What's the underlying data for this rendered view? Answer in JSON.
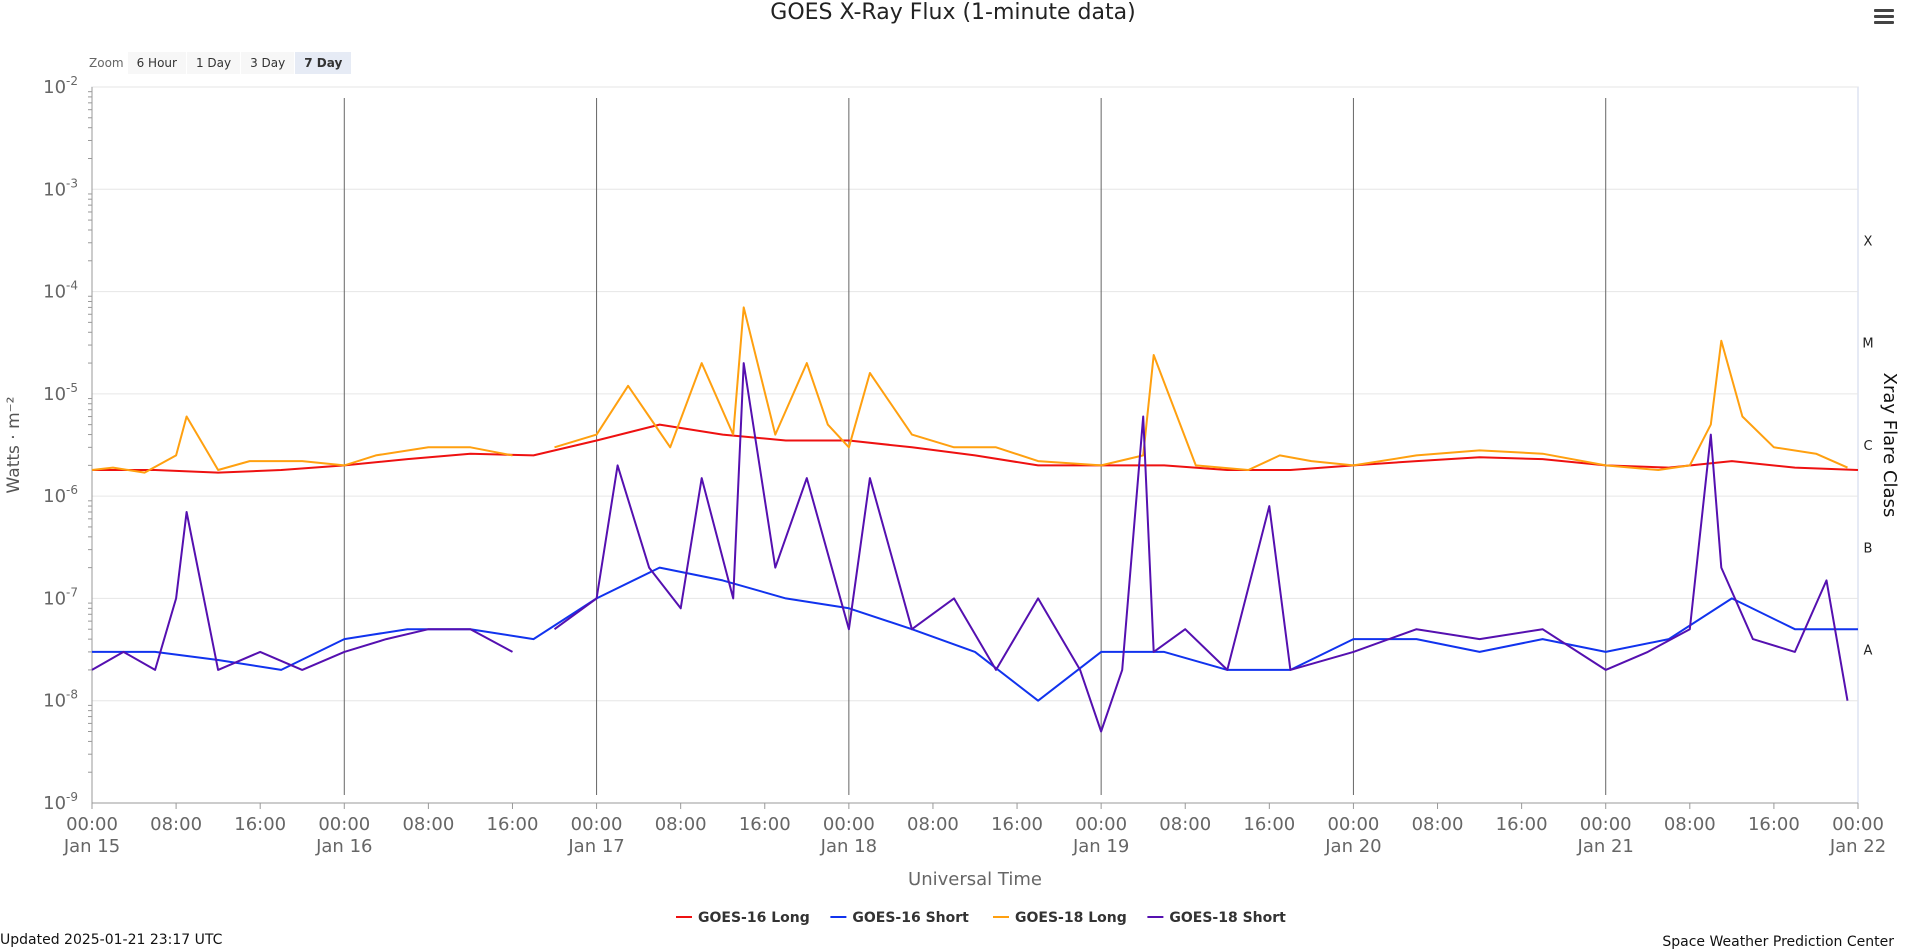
{
  "header": {
    "title": "GOES X-Ray Flux (1-minute data)",
    "menu_icon": "hamburger-menu-icon"
  },
  "zoom": {
    "label": "Zoom",
    "buttons": [
      "6 Hour",
      "1 Day",
      "3 Day",
      "7 Day"
    ],
    "active": "7 Day"
  },
  "footer": {
    "updated": "Updated 2025-01-21 23:17 UTC",
    "credit": "Space Weather Prediction Center"
  },
  "chart_data": {
    "type": "line",
    "title": "GOES X-Ray Flux (1-minute data)",
    "xlabel": "Universal Time",
    "ylabel": "Watts · m⁻²",
    "y2label": "Xray Flare Class",
    "yscale": "log",
    "ylim": [
      1e-09,
      0.01
    ],
    "y_ticks": [
      {
        "base": "10",
        "exp": "-2"
      },
      {
        "base": "10",
        "exp": "-3"
      },
      {
        "base": "10",
        "exp": "-4"
      },
      {
        "base": "10",
        "exp": "-5"
      },
      {
        "base": "10",
        "exp": "-6"
      },
      {
        "base": "10",
        "exp": "-7"
      },
      {
        "base": "10",
        "exp": "-8"
      },
      {
        "base": "10",
        "exp": "-9"
      }
    ],
    "xlim": [
      "2025-01-15 00:00",
      "2025-01-22 00:00"
    ],
    "x_ticks": [
      {
        "time": "00:00",
        "date": "Jan 15"
      },
      {
        "time": "08:00",
        "date": ""
      },
      {
        "time": "16:00",
        "date": ""
      },
      {
        "time": "00:00",
        "date": "Jan 16"
      },
      {
        "time": "08:00",
        "date": ""
      },
      {
        "time": "16:00",
        "date": ""
      },
      {
        "time": "00:00",
        "date": "Jan 17"
      },
      {
        "time": "08:00",
        "date": ""
      },
      {
        "time": "16:00",
        "date": ""
      },
      {
        "time": "00:00",
        "date": "Jan 18"
      },
      {
        "time": "08:00",
        "date": ""
      },
      {
        "time": "16:00",
        "date": ""
      },
      {
        "time": "00:00",
        "date": "Jan 19"
      },
      {
        "time": "08:00",
        "date": ""
      },
      {
        "time": "16:00",
        "date": ""
      },
      {
        "time": "00:00",
        "date": "Jan 20"
      },
      {
        "time": "08:00",
        "date": ""
      },
      {
        "time": "16:00",
        "date": ""
      },
      {
        "time": "00:00",
        "date": "Jan 21"
      },
      {
        "time": "08:00",
        "date": ""
      },
      {
        "time": "16:00",
        "date": ""
      },
      {
        "time": "00:00",
        "date": "Jan 22"
      }
    ],
    "day_lines": [
      "2025-01-16 00:00",
      "2025-01-17 00:00",
      "2025-01-18 00:00",
      "2025-01-19 00:00",
      "2025-01-20 00:00",
      "2025-01-21 00:00"
    ],
    "flare_classes": [
      {
        "label": "X",
        "flux": 0.0001
      },
      {
        "label": "M",
        "flux": 1e-05
      },
      {
        "label": "C",
        "flux": 1e-06
      },
      {
        "label": "B",
        "flux": 1e-07
      },
      {
        "label": "A",
        "flux": 1e-08
      }
    ],
    "grid": true,
    "legend": "bottom-center",
    "legend_entries": [
      {
        "name": "GOES-16 Long",
        "color": "#ee1111"
      },
      {
        "name": "GOES-16 Short",
        "color": "#1133ee"
      },
      {
        "name": "GOES-18 Long",
        "color": "#ffa010"
      },
      {
        "name": "GOES-18 Short",
        "color": "#5510b0"
      }
    ],
    "series": [
      {
        "name": "GOES-16 Long",
        "color": "#ee1111",
        "x": [
          "2025-01-15 00:00",
          "2025-01-15 06:00",
          "2025-01-15 12:00",
          "2025-01-15 18:00",
          "2025-01-16 00:00",
          "2025-01-16 06:00",
          "2025-01-16 12:00",
          "2025-01-16 18:00",
          "2025-01-17 00:00",
          "2025-01-17 06:00",
          "2025-01-17 12:00",
          "2025-01-17 18:00",
          "2025-01-18 00:00",
          "2025-01-18 06:00",
          "2025-01-18 12:00",
          "2025-01-18 18:00",
          "2025-01-19 00:00",
          "2025-01-19 06:00",
          "2025-01-19 12:00",
          "2025-01-19 18:00",
          "2025-01-20 00:00",
          "2025-01-20 06:00",
          "2025-01-20 12:00",
          "2025-01-20 18:00",
          "2025-01-21 00:00",
          "2025-01-21 06:00",
          "2025-01-21 12:00",
          "2025-01-21 18:00",
          "2025-01-22 00:00"
        ],
        "y": [
          1.8e-06,
          1.8e-06,
          1.7e-06,
          1.8e-06,
          2e-06,
          2.3e-06,
          2.6e-06,
          2.5e-06,
          3.5e-06,
          5e-06,
          4e-06,
          3.5e-06,
          3.5e-06,
          3e-06,
          2.5e-06,
          2e-06,
          2e-06,
          2e-06,
          1.8e-06,
          1.8e-06,
          2e-06,
          2.2e-06,
          2.4e-06,
          2.3e-06,
          2e-06,
          1.9e-06,
          2.2e-06,
          1.9e-06,
          1.8e-06
        ]
      },
      {
        "name": "GOES-16 Short",
        "color": "#1133ee",
        "x": [
          "2025-01-15 00:00",
          "2025-01-15 06:00",
          "2025-01-15 12:00",
          "2025-01-15 18:00",
          "2025-01-16 00:00",
          "2025-01-16 06:00",
          "2025-01-16 12:00",
          "2025-01-16 18:00",
          "2025-01-17 00:00",
          "2025-01-17 06:00",
          "2025-01-17 12:00",
          "2025-01-17 18:00",
          "2025-01-18 00:00",
          "2025-01-18 06:00",
          "2025-01-18 12:00",
          "2025-01-18 18:00",
          "2025-01-19 00:00",
          "2025-01-19 06:00",
          "2025-01-19 12:00",
          "2025-01-19 18:00",
          "2025-01-20 00:00",
          "2025-01-20 06:00",
          "2025-01-20 12:00",
          "2025-01-20 18:00",
          "2025-01-21 00:00",
          "2025-01-21 06:00",
          "2025-01-21 12:00",
          "2025-01-21 18:00",
          "2025-01-22 00:00"
        ],
        "y": [
          3e-08,
          3e-08,
          2.5e-08,
          2e-08,
          4e-08,
          5e-08,
          5e-08,
          4e-08,
          1e-07,
          2e-07,
          1.5e-07,
          1e-07,
          8e-08,
          5e-08,
          3e-08,
          1e-08,
          3e-08,
          3e-08,
          2e-08,
          2e-08,
          4e-08,
          4e-08,
          3e-08,
          4e-08,
          3e-08,
          4e-08,
          1e-07,
          5e-08,
          5e-08
        ]
      },
      {
        "name": "GOES-18 Long",
        "color": "#ffa010",
        "x": [
          "2025-01-15 00:00",
          "2025-01-15 02:00",
          "2025-01-15 05:00",
          "2025-01-15 08:00",
          "2025-01-15 09:00",
          "2025-01-15 12:00",
          "2025-01-15 15:00",
          "2025-01-15 20:00",
          "2025-01-16 00:00",
          "2025-01-16 03:00",
          "2025-01-16 08:00",
          "2025-01-16 12:00",
          "2025-01-16 16:00",
          "2025-01-16 17:00",
          "2025-01-16 20:00",
          "2025-01-17 00:00",
          "2025-01-17 03:00",
          "2025-01-17 05:00",
          "2025-01-17 07:00",
          "2025-01-17 10:00",
          "2025-01-17 13:00",
          "2025-01-17 14:00",
          "2025-01-17 17:00",
          "2025-01-17 20:00",
          "2025-01-17 22:00",
          "2025-01-18 00:00",
          "2025-01-18 02:00",
          "2025-01-18 06:00",
          "2025-01-18 10:00",
          "2025-01-18 14:00",
          "2025-01-18 18:00",
          "2025-01-19 00:00",
          "2025-01-19 04:00",
          "2025-01-19 05:00",
          "2025-01-19 09:00",
          "2025-01-19 14:00",
          "2025-01-19 17:00",
          "2025-01-19 20:00",
          "2025-01-20 00:00",
          "2025-01-20 06:00",
          "2025-01-20 12:00",
          "2025-01-20 18:00",
          "2025-01-21 00:00",
          "2025-01-21 05:00",
          "2025-01-21 08:00",
          "2025-01-21 10:00",
          "2025-01-21 11:00",
          "2025-01-21 13:00",
          "2025-01-21 16:00",
          "2025-01-21 20:00",
          "2025-01-21 23:00"
        ],
        "y": [
          1.8e-06,
          1.9e-06,
          1.7e-06,
          2.5e-06,
          6e-06,
          1.8e-06,
          2.2e-06,
          2.2e-06,
          2e-06,
          2.5e-06,
          3e-06,
          3e-06,
          2.5e-06,
          null,
          3e-06,
          4e-06,
          1.2e-05,
          6e-06,
          3e-06,
          2e-05,
          4e-06,
          7e-05,
          4e-06,
          2e-05,
          5e-06,
          3e-06,
          1.6e-05,
          4e-06,
          3e-06,
          3e-06,
          2.2e-06,
          2e-06,
          2.5e-06,
          2.4e-05,
          2e-06,
          1.8e-06,
          2.5e-06,
          2.2e-06,
          2e-06,
          2.5e-06,
          2.8e-06,
          2.6e-06,
          2e-06,
          1.8e-06,
          2e-06,
          5e-06,
          3.3e-05,
          6e-06,
          3e-06,
          2.6e-06,
          1.9e-06
        ]
      },
      {
        "name": "GOES-18 Short",
        "color": "#5510b0",
        "x": [
          "2025-01-15 00:00",
          "2025-01-15 03:00",
          "2025-01-15 06:00",
          "2025-01-15 08:00",
          "2025-01-15 09:00",
          "2025-01-15 12:00",
          "2025-01-15 16:00",
          "2025-01-15 20:00",
          "2025-01-16 00:00",
          "2025-01-16 04:00",
          "2025-01-16 08:00",
          "2025-01-16 12:00",
          "2025-01-16 16:00",
          "2025-01-16 17:00",
          "2025-01-16 20:00",
          "2025-01-17 00:00",
          "2025-01-17 02:00",
          "2025-01-17 05:00",
          "2025-01-17 08:00",
          "2025-01-17 10:00",
          "2025-01-17 13:00",
          "2025-01-17 14:00",
          "2025-01-17 17:00",
          "2025-01-17 20:00",
          "2025-01-18 00:00",
          "2025-01-18 02:00",
          "2025-01-18 06:00",
          "2025-01-18 10:00",
          "2025-01-18 14:00",
          "2025-01-18 18:00",
          "2025-01-18 22:00",
          "2025-01-19 00:00",
          "2025-01-19 02:00",
          "2025-01-19 04:00",
          "2025-01-19 05:00",
          "2025-01-19 08:00",
          "2025-01-19 12:00",
          "2025-01-19 16:00",
          "2025-01-19 18:00",
          "2025-01-20 00:00",
          "2025-01-20 06:00",
          "2025-01-20 12:00",
          "2025-01-20 18:00",
          "2025-01-21 00:00",
          "2025-01-21 04:00",
          "2025-01-21 08:00",
          "2025-01-21 10:00",
          "2025-01-21 11:00",
          "2025-01-21 14:00",
          "2025-01-21 18:00",
          "2025-01-21 21:00",
          "2025-01-21 23:00"
        ],
        "y": [
          2e-08,
          3e-08,
          2e-08,
          1e-07,
          7e-07,
          2e-08,
          3e-08,
          2e-08,
          3e-08,
          4e-08,
          5e-08,
          5e-08,
          3e-08,
          null,
          5e-08,
          1e-07,
          2e-06,
          2e-07,
          8e-08,
          1.5e-06,
          1e-07,
          2e-05,
          2e-07,
          1.5e-06,
          5e-08,
          1.5e-06,
          5e-08,
          1e-07,
          2e-08,
          1e-07,
          2e-08,
          5e-09,
          2e-08,
          6e-06,
          3e-08,
          5e-08,
          2e-08,
          8e-07,
          2e-08,
          3e-08,
          5e-08,
          4e-08,
          5e-08,
          2e-08,
          3e-08,
          5e-08,
          4e-06,
          2e-07,
          4e-08,
          3e-08,
          1.5e-07,
          1e-08
        ]
      }
    ]
  }
}
